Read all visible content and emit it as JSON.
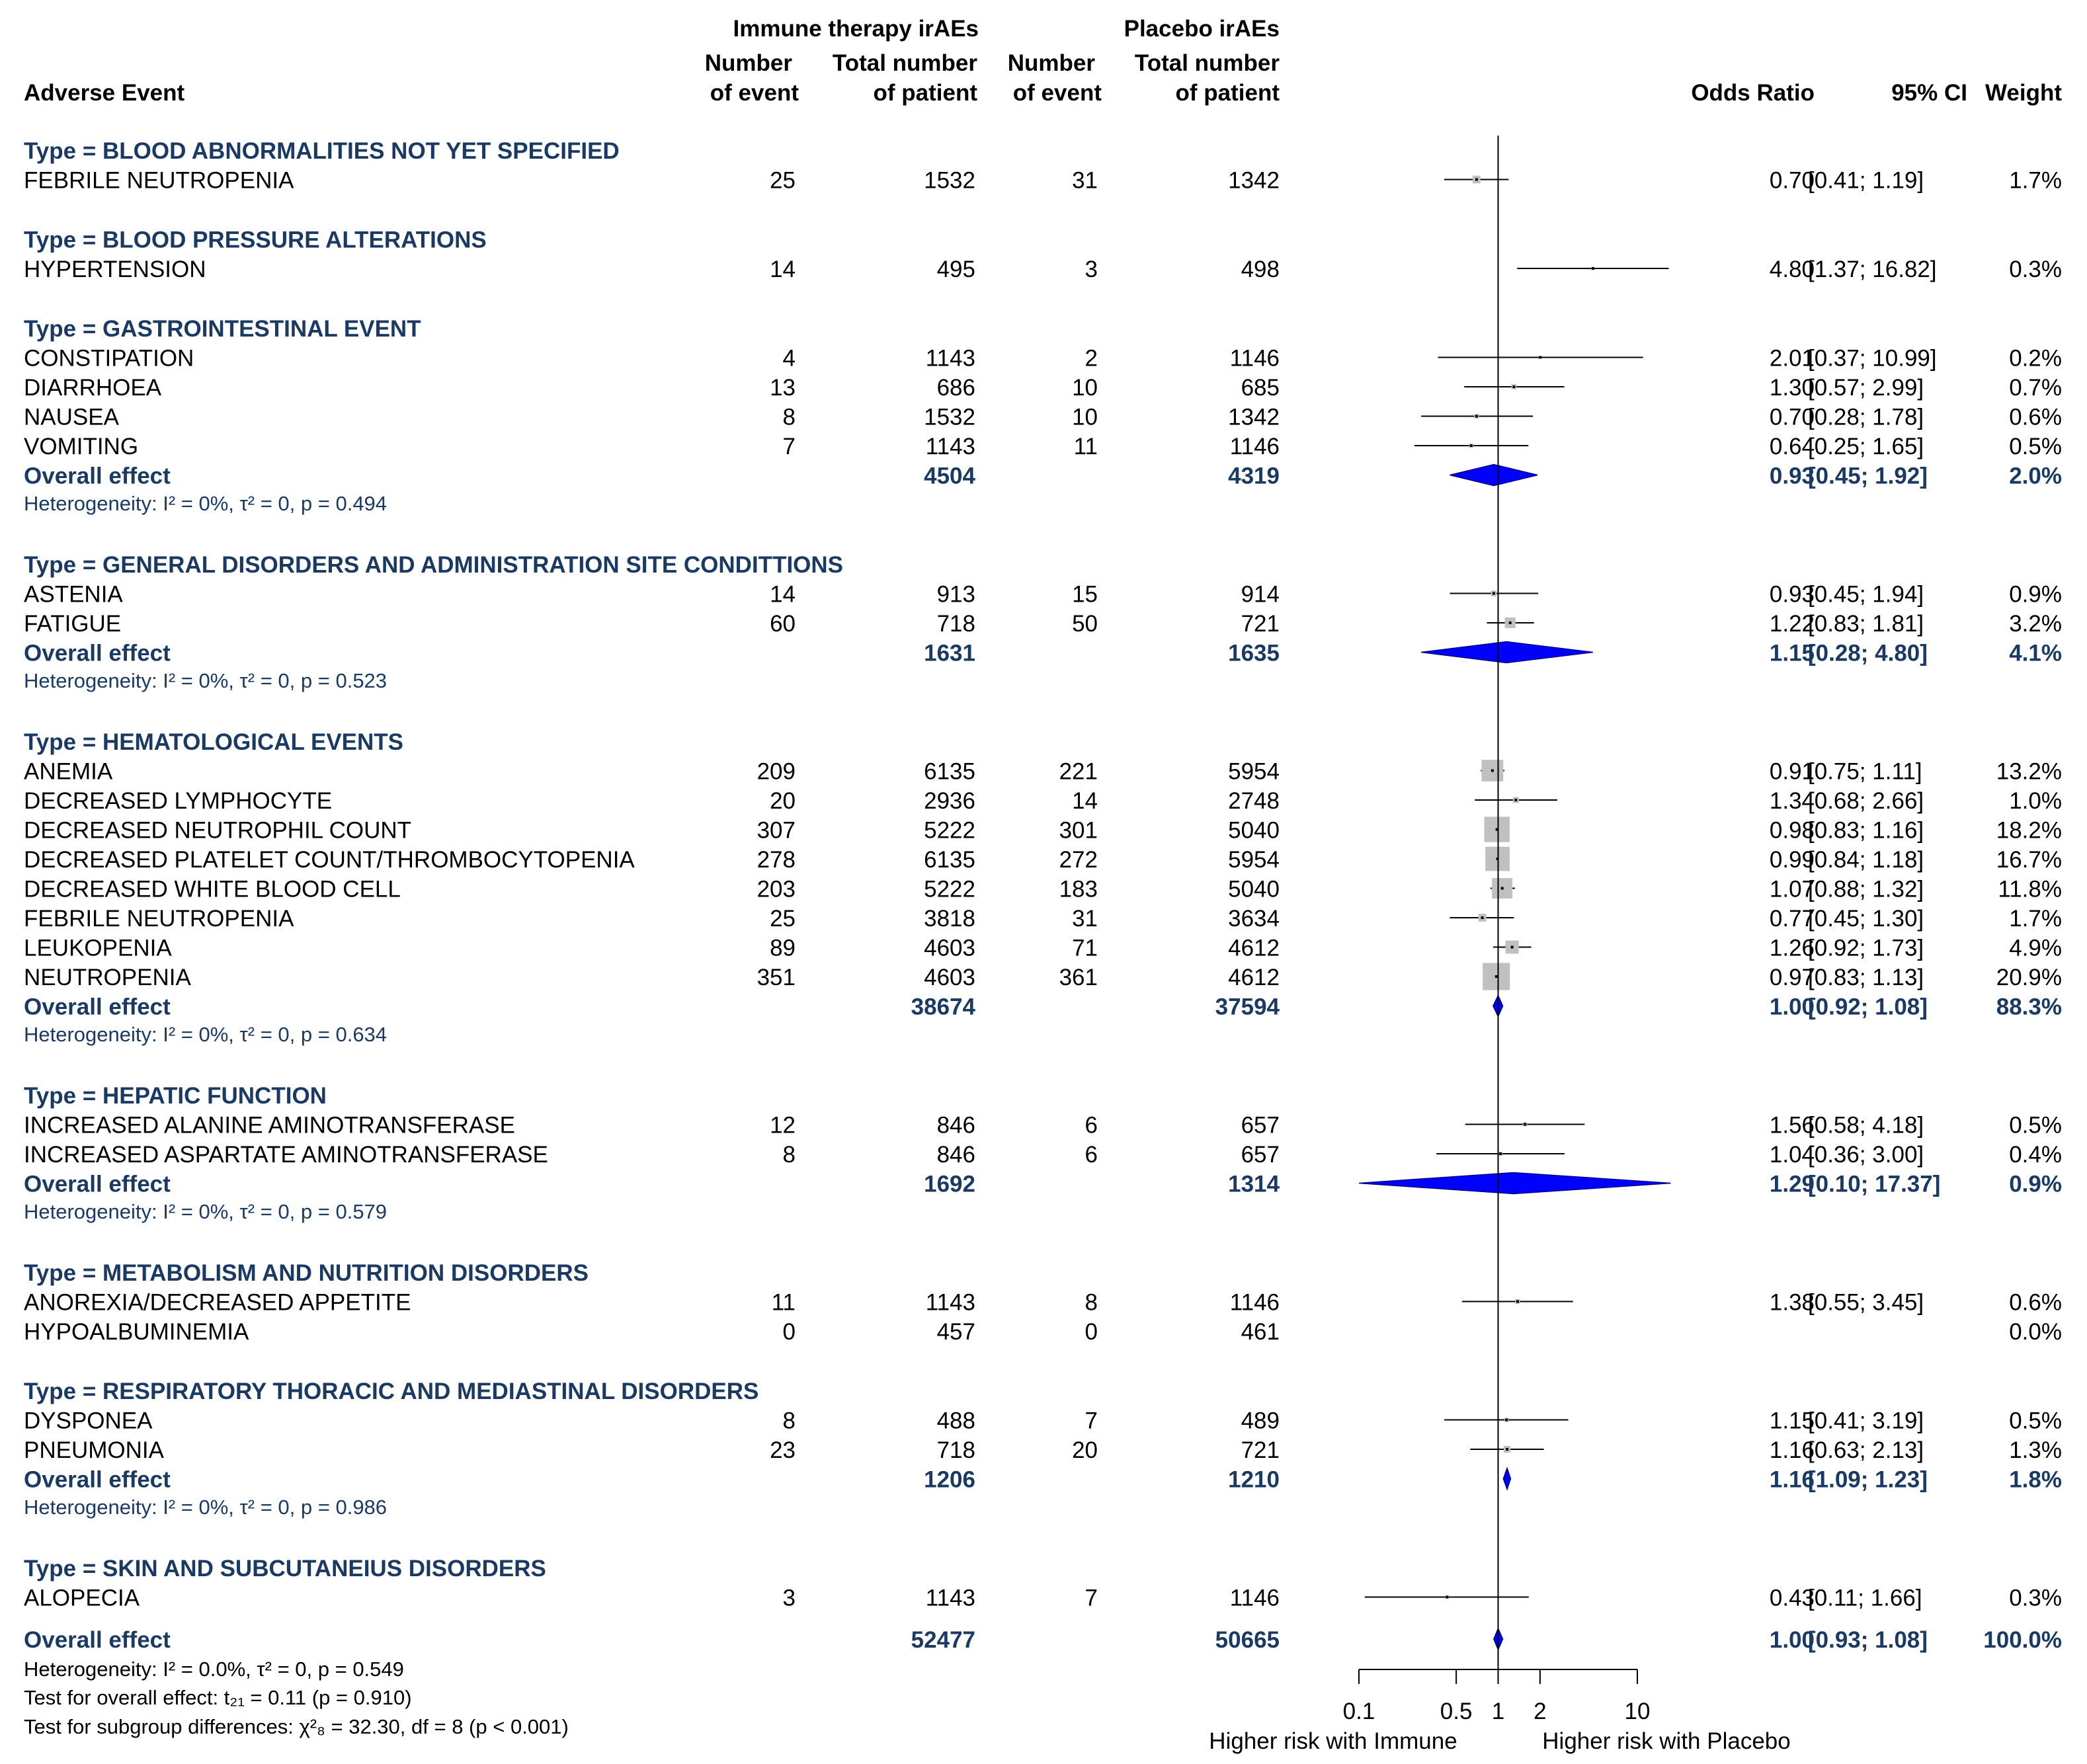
{
  "headers": {
    "immune_group": "Immune therapy irAEs",
    "placebo_group": "Placebo irAEs",
    "adverse_event": "Adverse Event",
    "events_line1": "Number",
    "events_line2": "of event",
    "total_line1": "Total number",
    "total_line2": "of patient",
    "odds_ratio": "Odds Ratio",
    "ci": "95% CI",
    "weight": "Weight"
  },
  "groups": [
    {
      "title": "Type = BLOOD ABNORMALITIES NOT YET SPECIFIED",
      "studies": [
        {
          "name": "FEBRILE NEUTROPENIA",
          "ev_i": "25",
          "n_i": "1532",
          "ev_p": "31",
          "n_p": "1342",
          "or": 0.7,
          "lo": 0.41,
          "hi": 1.19,
          "or_text": "0.70",
          "ci_text": "[0.41;  1.19]",
          "weight_text": "1.7%",
          "weight": 1.7
        }
      ]
    },
    {
      "title": "Type = BLOOD PRESSURE ALTERATIONS",
      "studies": [
        {
          "name": "HYPERTENSION",
          "ev_i": "14",
          "n_i": "495",
          "ev_p": "3",
          "n_p": "498",
          "or": 4.8,
          "lo": 1.37,
          "hi": 16.82,
          "or_text": "4.80",
          "ci_text": "[1.37; 16.82]",
          "weight_text": "0.3%",
          "weight": 0.3
        }
      ]
    },
    {
      "title": "Type = GASTROINTESTINAL EVENT",
      "studies": [
        {
          "name": "CONSTIPATION",
          "ev_i": "4",
          "n_i": "1143",
          "ev_p": "2",
          "n_p": "1146",
          "or": 2.01,
          "lo": 0.37,
          "hi": 10.99,
          "or_text": "2.01",
          "ci_text": "[0.37; 10.99]",
          "weight_text": "0.2%",
          "weight": 0.2
        },
        {
          "name": "DIARRHOEA",
          "ev_i": "13",
          "n_i": "686",
          "ev_p": "10",
          "n_p": "685",
          "or": 1.3,
          "lo": 0.57,
          "hi": 2.99,
          "or_text": "1.30",
          "ci_text": "[0.57;  2.99]",
          "weight_text": "0.7%",
          "weight": 0.7
        },
        {
          "name": "NAUSEA",
          "ev_i": "8",
          "n_i": "1532",
          "ev_p": "10",
          "n_p": "1342",
          "or": 0.7,
          "lo": 0.28,
          "hi": 1.78,
          "or_text": "0.70",
          "ci_text": "[0.28;  1.78]",
          "weight_text": "0.6%",
          "weight": 0.6
        },
        {
          "name": "VOMITING",
          "ev_i": "7",
          "n_i": "1143",
          "ev_p": "11",
          "n_p": "1146",
          "or": 0.64,
          "lo": 0.25,
          "hi": 1.65,
          "or_text": "0.64",
          "ci_text": "[0.25;  1.65]",
          "weight_text": "0.5%",
          "weight": 0.5
        }
      ],
      "overall": {
        "label": "Overall effect",
        "n_i": "4504",
        "n_p": "4319",
        "or": 0.93,
        "lo": 0.45,
        "hi": 1.92,
        "or_text": "0.93",
        "ci_text": "[0.45;  1.92]",
        "weight_text": "2.0%"
      },
      "heterogeneity": "Heterogeneity: I² = 0%, τ² = 0, p = 0.494"
    },
    {
      "title": "Type = GENERAL DISORDERS AND ADMINISTRATION SITE CONDITTIONS",
      "studies": [
        {
          "name": "ASTENIA",
          "ev_i": "14",
          "n_i": "913",
          "ev_p": "15",
          "n_p": "914",
          "or": 0.93,
          "lo": 0.45,
          "hi": 1.94,
          "or_text": "0.93",
          "ci_text": "[0.45;  1.94]",
          "weight_text": "0.9%",
          "weight": 0.9
        },
        {
          "name": "FATIGUE",
          "ev_i": "60",
          "n_i": "718",
          "ev_p": "50",
          "n_p": "721",
          "or": 1.22,
          "lo": 0.83,
          "hi": 1.81,
          "or_text": "1.22",
          "ci_text": "[0.83;  1.81]",
          "weight_text": "3.2%",
          "weight": 3.2
        }
      ],
      "overall": {
        "label": "Overall effect",
        "n_i": "1631",
        "n_p": "1635",
        "or": 1.15,
        "lo": 0.28,
        "hi": 4.8,
        "or_text": "1.15",
        "ci_text": "[0.28;  4.80]",
        "weight_text": "4.1%"
      },
      "heterogeneity": "Heterogeneity: I² = 0%, τ² = 0, p = 0.523"
    },
    {
      "title": "Type = HEMATOLOGICAL EVENTS",
      "studies": [
        {
          "name": "ANEMIA",
          "ev_i": "209",
          "n_i": "6135",
          "ev_p": "221",
          "n_p": "5954",
          "or": 0.91,
          "lo": 0.75,
          "hi": 1.11,
          "or_text": "0.91",
          "ci_text": "[0.75;  1.11]",
          "weight_text": "13.2%",
          "weight": 13.2
        },
        {
          "name": "DECREASED LYMPHOCYTE",
          "ev_i": "20",
          "n_i": "2936",
          "ev_p": "14",
          "n_p": "2748",
          "or": 1.34,
          "lo": 0.68,
          "hi": 2.66,
          "or_text": "1.34",
          "ci_text": "[0.68;  2.66]",
          "weight_text": "1.0%",
          "weight": 1.0
        },
        {
          "name": "DECREASED NEUTROPHIL COUNT",
          "ev_i": "307",
          "n_i": "5222",
          "ev_p": "301",
          "n_p": "5040",
          "or": 0.98,
          "lo": 0.83,
          "hi": 1.16,
          "or_text": "0.98",
          "ci_text": "[0.83;  1.16]",
          "weight_text": "18.2%",
          "weight": 18.2
        },
        {
          "name": "DECREASED PLATELET COUNT/THROMBOCYTOPENIA",
          "ev_i": "278",
          "n_i": "6135",
          "ev_p": "272",
          "n_p": "5954",
          "or": 0.99,
          "lo": 0.84,
          "hi": 1.18,
          "or_text": "0.99",
          "ci_text": "[0.84;  1.18]",
          "weight_text": "16.7%",
          "weight": 16.7
        },
        {
          "name": "DECREASED WHITE BLOOD CELL",
          "ev_i": "203",
          "n_i": "5222",
          "ev_p": "183",
          "n_p": "5040",
          "or": 1.07,
          "lo": 0.88,
          "hi": 1.32,
          "or_text": "1.07",
          "ci_text": "[0.88;  1.32]",
          "weight_text": "11.8%",
          "weight": 11.8
        },
        {
          "name": "FEBRILE NEUTROPENIA",
          "ev_i": "25",
          "n_i": "3818",
          "ev_p": "31",
          "n_p": "3634",
          "or": 0.77,
          "lo": 0.45,
          "hi": 1.3,
          "or_text": "0.77",
          "ci_text": "[0.45;  1.30]",
          "weight_text": "1.7%",
          "weight": 1.7
        },
        {
          "name": "LEUKOPENIA",
          "ev_i": "89",
          "n_i": "4603",
          "ev_p": "71",
          "n_p": "4612",
          "or": 1.26,
          "lo": 0.92,
          "hi": 1.73,
          "or_text": "1.26",
          "ci_text": "[0.92;  1.73]",
          "weight_text": "4.9%",
          "weight": 4.9
        },
        {
          "name": "NEUTROPENIA",
          "ev_i": "351",
          "n_i": "4603",
          "ev_p": "361",
          "n_p": "4612",
          "or": 0.97,
          "lo": 0.83,
          "hi": 1.13,
          "or_text": "0.97",
          "ci_text": "[0.83;  1.13]",
          "weight_text": "20.9%",
          "weight": 20.9
        }
      ],
      "overall": {
        "label": "Overall effect",
        "n_i": "38674",
        "n_p": "37594",
        "or": 1.0,
        "lo": 0.92,
        "hi": 1.08,
        "or_text": "1.00",
        "ci_text": "[0.92;  1.08]",
        "weight_text": "88.3%"
      },
      "heterogeneity": "Heterogeneity: I² = 0%, τ² = 0, p = 0.634"
    },
    {
      "title": "Type = HEPATIC FUNCTION",
      "studies": [
        {
          "name": "INCREASED ALANINE AMINOTRANSFERASE",
          "ev_i": "12",
          "n_i": "846",
          "ev_p": "6",
          "n_p": "657",
          "or": 1.56,
          "lo": 0.58,
          "hi": 4.18,
          "or_text": "1.56",
          "ci_text": "[0.58;  4.18]",
          "weight_text": "0.5%",
          "weight": 0.5
        },
        {
          "name": "INCREASED ASPARTATE AMINOTRANSFERASE",
          "ev_i": "8",
          "n_i": "846",
          "ev_p": "6",
          "n_p": "657",
          "or": 1.04,
          "lo": 0.36,
          "hi": 3.0,
          "or_text": "1.04",
          "ci_text": "[0.36;  3.00]",
          "weight_text": "0.4%",
          "weight": 0.4
        }
      ],
      "overall": {
        "label": "Overall effect",
        "n_i": "1692",
        "n_p": "1314",
        "or": 1.29,
        "lo": 0.1,
        "hi": 17.37,
        "or_text": "1.29",
        "ci_text": "[0.10; 17.37]",
        "weight_text": "0.9%"
      },
      "heterogeneity": "Heterogeneity: I² = 0%, τ² = 0, p = 0.579"
    },
    {
      "title": "Type = METABOLISM AND NUTRITION DISORDERS",
      "studies": [
        {
          "name": "ANOREXIA/DECREASED APPETITE",
          "ev_i": "11",
          "n_i": "1143",
          "ev_p": "8",
          "n_p": "1146",
          "or": 1.38,
          "lo": 0.55,
          "hi": 3.45,
          "or_text": "1.38",
          "ci_text": "[0.55;  3.45]",
          "weight_text": "0.6%",
          "weight": 0.6
        },
        {
          "name": "HYPOALBUMINEMIA",
          "ev_i": "0",
          "n_i": "457",
          "ev_p": "0",
          "n_p": "461",
          "or": null,
          "lo": null,
          "hi": null,
          "or_text": "",
          "ci_text": "",
          "weight_text": "0.0%",
          "weight": 0.0
        }
      ]
    },
    {
      "title": "Type = RESPIRATORY THORACIC AND MEDIASTINAL DISORDERS",
      "studies": [
        {
          "name": "DYSPONEA",
          "ev_i": "8",
          "n_i": "488",
          "ev_p": "7",
          "n_p": "489",
          "or": 1.15,
          "lo": 0.41,
          "hi": 3.19,
          "or_text": "1.15",
          "ci_text": "[0.41;  3.19]",
          "weight_text": "0.5%",
          "weight": 0.5
        },
        {
          "name": "PNEUMONIA",
          "ev_i": "23",
          "n_i": "718",
          "ev_p": "20",
          "n_p": "721",
          "or": 1.16,
          "lo": 0.63,
          "hi": 2.13,
          "or_text": "1.16",
          "ci_text": "[0.63;  2.13]",
          "weight_text": "1.3%",
          "weight": 1.3
        }
      ],
      "overall": {
        "label": "Overall effect",
        "n_i": "1206",
        "n_p": "1210",
        "or": 1.16,
        "lo": 1.09,
        "hi": 1.23,
        "or_text": "1.16",
        "ci_text": "[1.09;  1.23]",
        "weight_text": "1.8%"
      },
      "heterogeneity": "Heterogeneity: I² = 0%, τ² = 0, p = 0.986"
    },
    {
      "title": "Type = SKIN AND SUBCUTANEIUS DISORDERS",
      "studies": [
        {
          "name": "ALOPECIA",
          "ev_i": "3",
          "n_i": "1143",
          "ev_p": "7",
          "n_p": "1146",
          "or": 0.43,
          "lo": 0.11,
          "hi": 1.66,
          "or_text": "0.43",
          "ci_text": "[0.11;  1.66]",
          "weight_text": "0.3%",
          "weight": 0.3
        }
      ]
    }
  ],
  "overall": {
    "label": "Overall effect",
    "n_i": "52477",
    "n_p": "50665",
    "or": 1.0,
    "lo": 0.93,
    "hi": 1.08,
    "or_text": "1.00",
    "ci_text": "[0.93;  1.08]",
    "weight_text": "100.0%"
  },
  "footer": {
    "heterogeneity": "Heterogeneity: I² = 0.0%, τ² = 0, p = 0.549",
    "overall_test": "Test for overall effect: t₂₁ = 0.11 (p = 0.910)",
    "subgroup_test": "Test for subgroup differences: χ²₈ = 32.30, df = 8 (p < 0.001)"
  },
  "axis": {
    "ticks": [
      0.1,
      0.5,
      1,
      2,
      10
    ],
    "tick_labels": [
      "0.1",
      "0.5",
      "1",
      "2",
      "10"
    ],
    "label_left": "Higher risk with Immune",
    "label_right": "Higher risk with Placebo"
  },
  "colors": {
    "group_title": "#1b3a63",
    "diamond": "#0000ff",
    "box": "#c0c0c0",
    "line": "#000000"
  },
  "chart_data": {
    "type": "forest",
    "scale": "log",
    "xlim": [
      0.1,
      10
    ],
    "reference": 1,
    "xlabel_left": "Higher risk with Immune",
    "xlabel_right": "Higher risk with Placebo",
    "measure": "Odds Ratio",
    "ci_level": "95% CI"
  }
}
